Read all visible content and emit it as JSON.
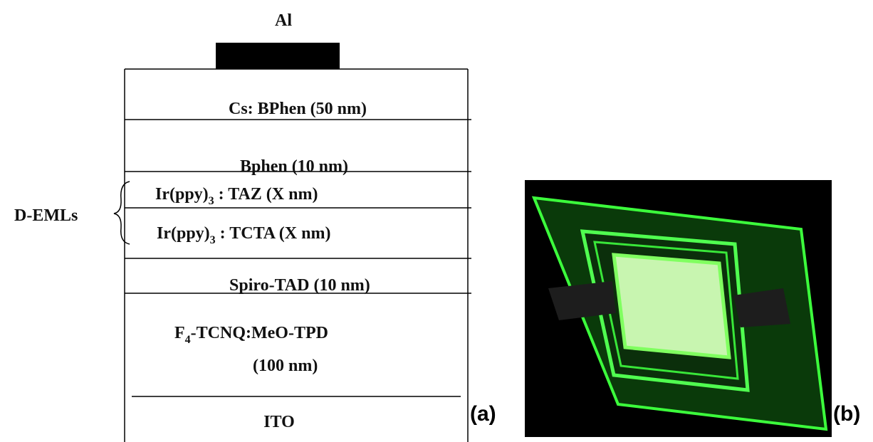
{
  "header": {
    "title": "Al"
  },
  "layers": [
    {
      "text": "Cs: BPhen (50 nm)"
    },
    {
      "text": "Bphen (10 nm)"
    },
    {
      "text": "Ir(ppy)",
      "sub": "3",
      "rest": " : TAZ (X nm)"
    },
    {
      "text": "Ir(ppy)",
      "sub": "3",
      "rest": " : TCTA (X nm)"
    },
    {
      "text": "Spiro-TAD (10 nm)"
    },
    {
      "text": "F",
      "sub": "4",
      "rest": "-TCNQ:MeO-TPD"
    },
    {
      "text": "(100 nm)"
    },
    {
      "text": "ITO"
    }
  ],
  "group_label": "D-EMLs",
  "panels": {
    "a": "(a)",
    "b": "(b)"
  }
}
